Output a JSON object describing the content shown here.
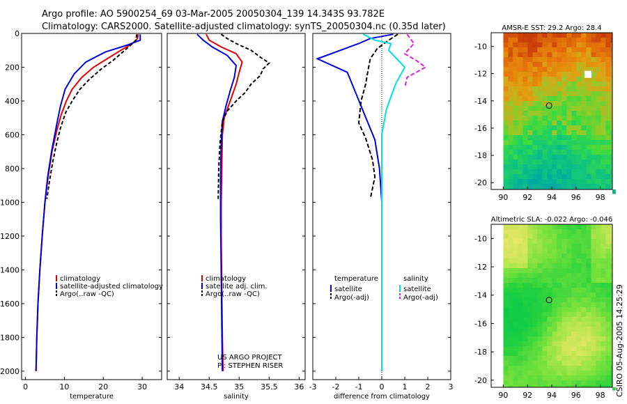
{
  "header": {
    "line1": "Argo profile: AO 5900254_69 03-Mar-2005 20050304_139 14.343S 93.782E",
    "line2": "Climatology: CARS2000. Satellite-adjusted climatology: synTS_20050304.nc (0.35d later)"
  },
  "side_label": "CSIRO 05-Aug-2005 14:25:29",
  "colors": {
    "climatology": "#e00000",
    "satellite": "#0000dd",
    "argo": "#000000",
    "sal_satellite": "#00e0e0",
    "sal_argo": "#e020e0"
  },
  "chart_data": [
    {
      "type": "line",
      "id": "temperature_profile",
      "xlabel": "temperature",
      "xlim": [
        -1,
        35
      ],
      "ylim": [
        2050,
        0
      ],
      "xticks": [
        0,
        10,
        20,
        30
      ],
      "yticks": [
        0,
        200,
        400,
        600,
        800,
        1000,
        1200,
        1400,
        1600,
        1800,
        2000
      ],
      "legend": [
        "climatology",
        "satellite-adjusted climatology",
        "Argo(..raw -QC)"
      ],
      "series": [
        {
          "name": "climatology",
          "color": "#e00000",
          "x": [
            29.0,
            28.8,
            27.5,
            24.5,
            21.0,
            17.5,
            14.5,
            12.0,
            10.5,
            9.2,
            8.2,
            6.8,
            5.8,
            5.0,
            4.3,
            3.7,
            3.2,
            2.9,
            2.7
          ],
          "y": [
            5,
            30,
            60,
            100,
            150,
            200,
            260,
            330,
            400,
            480,
            560,
            700,
            850,
            1000,
            1200,
            1400,
            1600,
            1800,
            2000
          ]
        },
        {
          "name": "satellite-adjusted climatology",
          "color": "#0000dd",
          "x": [
            29.5,
            29.5,
            26.0,
            20.5,
            15.5,
            12.5,
            10.2,
            9.0,
            8.0,
            6.7,
            5.7,
            5.0,
            4.3,
            3.7,
            3.2,
            2.9,
            2.7
          ],
          "y": [
            5,
            40,
            70,
            110,
            170,
            240,
            330,
            430,
            540,
            700,
            850,
            1000,
            1200,
            1400,
            1600,
            1800,
            2000
          ]
        },
        {
          "name": "Argo(..raw -QC)",
          "color": "#000000",
          "dash": "5,3",
          "x": [
            28.6,
            28.4,
            27.0,
            25.0,
            22.5,
            19.5,
            16.5,
            14.0,
            12.0,
            10.3,
            9.0,
            8.0,
            7.0,
            6.2,
            5.5
          ],
          "y": [
            5,
            40,
            70,
            110,
            160,
            210,
            270,
            330,
            400,
            470,
            560,
            650,
            760,
            870,
            980
          ]
        }
      ]
    },
    {
      "type": "line",
      "id": "salinity_profile",
      "xlabel": "salinity",
      "xlim": [
        33.8,
        36.1
      ],
      "ylim": [
        2050,
        0
      ],
      "xticks": [
        34,
        34.5,
        35,
        35.5,
        36
      ],
      "yticks": [
        0,
        200,
        400,
        600,
        800,
        1000,
        1200,
        1400,
        1600,
        1800,
        2000
      ],
      "legend": [
        "climatology",
        "satellite adj. clim.",
        "Argo(..raw -QC)"
      ],
      "annotations": [
        "US ARGO PROJECT",
        "PI: STEPHEN RISER"
      ],
      "series": [
        {
          "name": "climatology",
          "color": "#e00000",
          "x": [
            34.45,
            34.5,
            34.7,
            34.95,
            35.05,
            35.0,
            34.95,
            34.85,
            34.75,
            34.72,
            34.71,
            34.7,
            34.7,
            34.71,
            34.72,
            34.73
          ],
          "y": [
            5,
            40,
            80,
            120,
            170,
            230,
            300,
            400,
            500,
            600,
            800,
            1000,
            1200,
            1500,
            1800,
            2000
          ]
        },
        {
          "name": "satellite adj. clim.",
          "color": "#0000dd",
          "x": [
            34.3,
            34.4,
            34.55,
            34.8,
            34.95,
            34.92,
            34.85,
            34.78,
            34.72,
            34.7,
            34.69,
            34.69,
            34.7,
            34.71,
            34.72
          ],
          "y": [
            5,
            40,
            80,
            130,
            190,
            260,
            340,
            430,
            520,
            650,
            850,
            1100,
            1400,
            1700,
            2000
          ]
        },
        {
          "name": "Argo(..raw -QC)",
          "color": "#000000",
          "dash": "5,3",
          "x": [
            34.7,
            34.8,
            34.95,
            35.2,
            35.35,
            35.5,
            35.4,
            35.35,
            35.2,
            35.1,
            34.95,
            34.8,
            34.72,
            34.68,
            34.66,
            34.65
          ],
          "y": [
            5,
            30,
            60,
            100,
            140,
            175,
            210,
            250,
            300,
            350,
            400,
            460,
            520,
            650,
            800,
            980
          ]
        }
      ]
    },
    {
      "type": "line",
      "id": "difference_profile",
      "xlabel": "difference from climatology",
      "xlim": [
        -3,
        3
      ],
      "ylim": [
        2050,
        0
      ],
      "xticks": [
        -3,
        -2,
        -1,
        0,
        1,
        2,
        3
      ],
      "yticks": [
        0,
        200,
        400,
        600,
        800,
        1000,
        1200,
        1400,
        1600,
        1800,
        2000
      ],
      "legend": {
        "left_title": "temperature",
        "left": [
          "satellite",
          "Argo(-adj)"
        ],
        "right_title": "salinity",
        "right": [
          "satellite",
          "Argo(-adj)"
        ]
      },
      "series": [
        {
          "name": "temperature satellite",
          "color": "#0000dd",
          "x": [
            0.5,
            -0.5,
            -1.0,
            -2.8,
            -1.5,
            -1.2,
            -0.9,
            -0.6,
            -0.3,
            -0.1,
            0.0,
            0.0,
            0.0,
            0.0
          ],
          "y": [
            5,
            30,
            60,
            150,
            230,
            330,
            430,
            530,
            630,
            800,
            1000,
            1300,
            1600,
            2000
          ]
        },
        {
          "name": "temperature Argo(-adj)",
          "color": "#000000",
          "dash": "6,3",
          "x": [
            0.7,
            0.3,
            -0.2,
            -0.5,
            -0.6,
            -0.7,
            -0.9,
            -1.0,
            -0.7,
            -0.4,
            -0.3,
            -0.5
          ],
          "y": [
            5,
            40,
            90,
            150,
            220,
            300,
            400,
            530,
            620,
            750,
            850,
            980
          ]
        },
        {
          "name": "salinity satellite",
          "color": "#00e0e0",
          "x": [
            -0.8,
            -0.3,
            0.4,
            0.3,
            1.0,
            0.6,
            0.2,
            0.0,
            0.0,
            0.0,
            0.0,
            0.0
          ],
          "y": [
            5,
            40,
            60,
            100,
            200,
            300,
            450,
            600,
            800,
            1200,
            1600,
            2000
          ]
        },
        {
          "name": "salinity Argo(-adj)",
          "color": "#e020e0",
          "dash": "6,3",
          "x": [
            1.1,
            1.4,
            1.0,
            1.5,
            1.9,
            1.1,
            1.0
          ],
          "y": [
            5,
            60,
            120,
            160,
            200,
            260,
            320
          ]
        }
      ]
    },
    {
      "type": "heatmap",
      "id": "sst_map",
      "title": "AMSR-E SST: 29.2 Argo: 28.4",
      "xlim": [
        89,
        99
      ],
      "ylim": [
        -20.5,
        -9
      ],
      "xticks": [
        90,
        92,
        94,
        96,
        98
      ],
      "yticks": [
        -10,
        -12,
        -14,
        -16,
        -18,
        -20
      ],
      "marker": {
        "lon": 93.782,
        "lat": -14.343
      }
    },
    {
      "type": "heatmap",
      "id": "sla_map",
      "title": "Altimetric SLA: -0.022 Argo: -0.046",
      "xlim": [
        89,
        99
      ],
      "ylim": [
        -20.5,
        -9
      ],
      "xticks": [
        90,
        92,
        94,
        96,
        98
      ],
      "yticks": [
        -10,
        -12,
        -14,
        -16,
        -18,
        -20
      ],
      "marker": {
        "lon": 93.782,
        "lat": -14.343
      }
    }
  ]
}
